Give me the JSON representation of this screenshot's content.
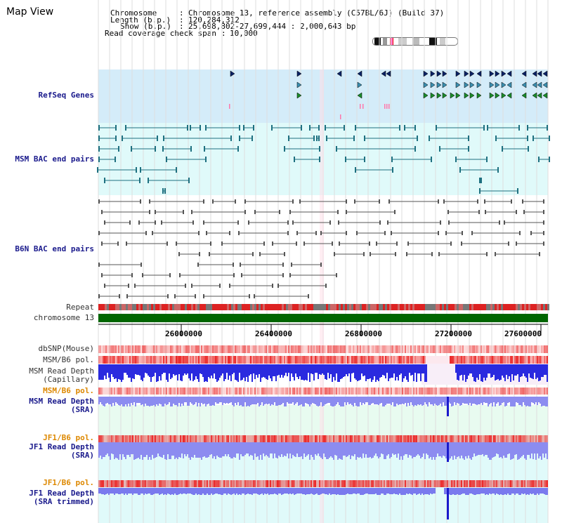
{
  "title": "Map View",
  "info": {
    "chromosome_label": "Chromosome",
    "chromosome_value": "Chromosome 13, reference assembly (C57BL/6J) (Build 37)",
    "length_label": "Length (b.p.)",
    "length_value": "120,284,312",
    "show_label": "Show (b.p.)",
    "show_value": "25,698,802-27,699,444 : 2,000,643 bp",
    "coverage_label": "Read coverage check span",
    "coverage_value": "10,000"
  },
  "tracks": {
    "refseq": "RefSeq Genes",
    "msm_bac": "MSM BAC end pairs",
    "b6n_bac": "B6N BAC end pairs",
    "repeat": "Repeat",
    "chromosome": "chromosome 13",
    "dbsnp": "dbSNP(Mouse)",
    "msm_b6_pol_1": "MSM/B6 pol.",
    "msm_read_depth_cap_1": "MSM Read Depth",
    "msm_read_depth_cap_2": "(Capillary)",
    "msm_b6_pol_2": "MSM/B6 pol.",
    "msm_read_depth_sra_1": "MSM Read Depth",
    "msm_read_depth_sra_2": "(SRA)",
    "jf1_b6_pol_1": "JF1/B6 pol.",
    "jf1_read_depth_sra_1": "JF1 Read Depth",
    "jf1_read_depth_sra_2": "(SRA)",
    "jf1_b6_pol_2": "JF1/B6 pol.",
    "jf1_read_depth_trim_1": "JF1 Read Depth",
    "jf1_read_depth_trim_2": "(SRA trimmed)"
  },
  "axis": {
    "ticks": [
      "26000000",
      "26400000",
      "26800000",
      "27200000",
      "27600000"
    ]
  },
  "colors": {
    "refseq_bg": "#d4ecf9",
    "bac_bg": "#e0fafa",
    "msm_gene_color": "#1e7080",
    "chromosome_bar": "#006600",
    "depth_blue": "#2a2adf",
    "depth_light": "#8c8cf0"
  }
}
